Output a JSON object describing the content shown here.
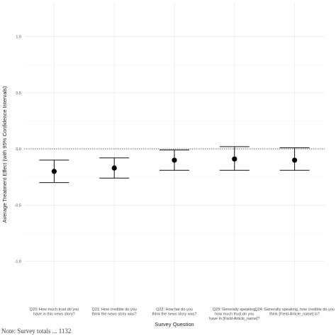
{
  "chart_data": {
    "type": "errorbar",
    "xlabel": "Survey Question",
    "ylabel": "Average Treatment Effect (with 95% Confidence Intervals)",
    "ylim": [
      -1.4,
      1.3
    ],
    "y_ticks": [
      1.0,
      0.5,
      0.0,
      -0.5,
      -1.0
    ],
    "y_tick_labels": [
      "1.0",
      "0.5",
      "0.0",
      "-0.5",
      "-1.0"
    ],
    "reference_line": {
      "y": 0.0,
      "style": "dotted"
    },
    "grid": true,
    "categories": [
      [
        "Q20: How much trust do you",
        "have in this news story?"
      ],
      [
        "Q21: How credible do you",
        "think the news story was?"
      ],
      [
        "Q22: How fair do you",
        "think the news story was?"
      ],
      [
        "Q23: Generally speaking,",
        "how much trust do you",
        "have in [Field-Article_name]?"
      ],
      [
        "Q24: Generally speaking, how credible do you",
        "think [Field-Article_name] is?"
      ]
    ],
    "estimates": [
      -0.2,
      -0.17,
      -0.1,
      -0.09,
      -0.1
    ],
    "ci_lower": [
      -0.3,
      -0.26,
      -0.19,
      -0.19,
      -0.19
    ],
    "ci_upper": [
      -0.1,
      -0.08,
      -0.01,
      0.02,
      0.01
    ]
  },
  "note": "Note: Survey totals ... 1132"
}
